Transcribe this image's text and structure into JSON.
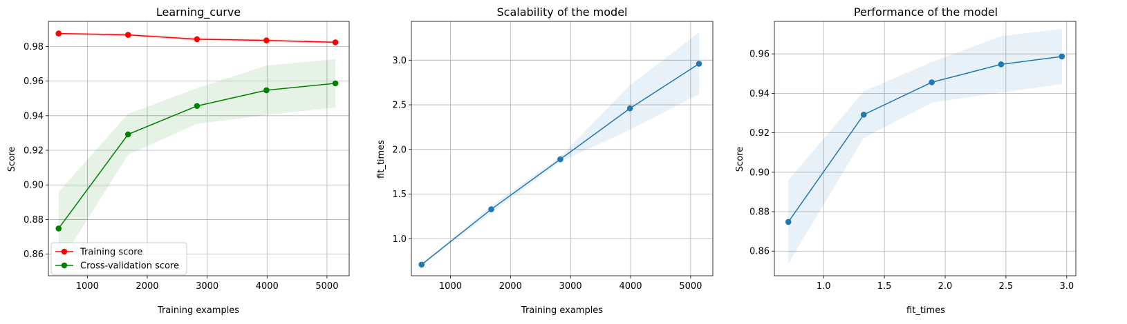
{
  "colors": {
    "train": "#ff0000",
    "cv": "#008000",
    "model": "#1f77b4",
    "grid": "#b0b0b0",
    "spine": "#000000"
  },
  "chart_data": [
    {
      "type": "line",
      "title": "Learning_curve",
      "xlabel": "Training examples",
      "ylabel": "Score",
      "xlim": [
        350,
        5370
      ],
      "ylim": [
        0.8475,
        0.9945
      ],
      "xticks": [
        1000,
        2000,
        3000,
        4000,
        5000
      ],
      "xtick_labels": [
        "1000",
        "2000",
        "3000",
        "4000",
        "5000"
      ],
      "yticks": [
        0.86,
        0.88,
        0.9,
        0.92,
        0.94,
        0.96,
        0.98
      ],
      "ytick_labels": [
        "0.86",
        "0.88",
        "0.90",
        "0.92",
        "0.94",
        "0.96",
        "0.98"
      ],
      "grid": true,
      "legend": {
        "position": "lower left",
        "entries": [
          "Training score",
          "Cross-validation score"
        ]
      },
      "x": [
        520,
        1680,
        2830,
        3990,
        5140
      ],
      "series": [
        {
          "name": "Training score",
          "color": "train",
          "values": [
            0.9875,
            0.9867,
            0.9842,
            0.9835,
            0.9824
          ],
          "band_lower": [
            0.9868,
            0.9858,
            0.9832,
            0.9826,
            0.9815
          ],
          "band_upper": [
            0.9882,
            0.9876,
            0.9852,
            0.9844,
            0.9833
          ]
        },
        {
          "name": "Cross-validation score",
          "color": "cv",
          "values": [
            0.8748,
            0.9292,
            0.9456,
            0.9547,
            0.9587
          ],
          "band_lower": [
            0.8537,
            0.9174,
            0.9353,
            0.9404,
            0.9447
          ],
          "band_upper": [
            0.8959,
            0.941,
            0.9559,
            0.969,
            0.9727
          ]
        }
      ]
    },
    {
      "type": "line",
      "title": "Scalability of the model",
      "xlabel": "Training examples",
      "ylabel": "fit_times",
      "xlim": [
        350,
        5370
      ],
      "ylim": [
        0.585,
        3.435
      ],
      "xticks": [
        1000,
        2000,
        3000,
        4000,
        5000
      ],
      "xtick_labels": [
        "1000",
        "2000",
        "3000",
        "4000",
        "5000"
      ],
      "yticks": [
        1.0,
        1.5,
        2.0,
        2.5,
        3.0
      ],
      "ytick_labels": [
        "1.0",
        "1.5",
        "2.0",
        "2.5",
        "3.0"
      ],
      "grid": true,
      "x": [
        520,
        1680,
        2830,
        3990,
        5140
      ],
      "series": [
        {
          "color": "model",
          "values": [
            0.71,
            1.33,
            1.89,
            2.46,
            2.96
          ],
          "band_lower": [
            0.7,
            1.29,
            1.86,
            2.22,
            2.62
          ],
          "band_upper": [
            0.72,
            1.37,
            1.92,
            2.72,
            3.31
          ]
        }
      ]
    },
    {
      "type": "line",
      "title": "Performance of the model",
      "xlabel": "fit_times",
      "ylabel": "Score",
      "xlim": [
        0.595,
        3.075
      ],
      "ylim": [
        0.8475,
        0.9765
      ],
      "xticks": [
        1.0,
        1.5,
        2.0,
        2.5,
        3.0
      ],
      "xtick_labels": [
        "1.0",
        "1.5",
        "2.0",
        "2.5",
        "3.0"
      ],
      "yticks": [
        0.86,
        0.88,
        0.9,
        0.92,
        0.94,
        0.96
      ],
      "ytick_labels": [
        "0.86",
        "0.88",
        "0.90",
        "0.92",
        "0.94",
        "0.96"
      ],
      "grid": true,
      "x": [
        0.71,
        1.33,
        1.89,
        2.46,
        2.96
      ],
      "series": [
        {
          "color": "model",
          "values": [
            0.8748,
            0.9292,
            0.9456,
            0.9547,
            0.9587
          ],
          "band_lower": [
            0.8537,
            0.9174,
            0.9353,
            0.9404,
            0.9447
          ],
          "band_upper": [
            0.8959,
            0.941,
            0.9559,
            0.969,
            0.9727
          ]
        }
      ]
    }
  ]
}
